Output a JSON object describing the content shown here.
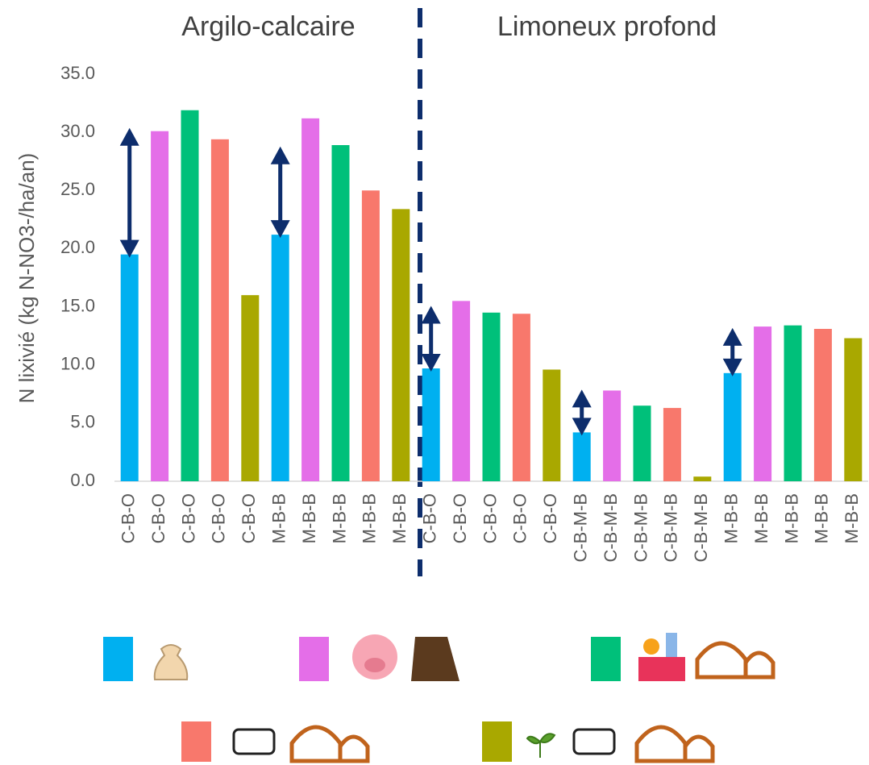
{
  "chart_data": {
    "type": "bar",
    "ylabel": "N lixivié (kg N-NO3-/ha/an)",
    "group_labels": [
      "Argilo-calcaire",
      "Limoneux profond"
    ],
    "categories": [
      "C-B-O",
      "C-B-O",
      "C-B-O",
      "C-B-O",
      "C-B-O",
      "M-B-B",
      "M-B-B",
      "M-B-B",
      "M-B-B",
      "M-B-B",
      "C-B-O",
      "C-B-O",
      "C-B-O",
      "C-B-O",
      "C-B-O",
      "C-B-M-B",
      "C-B-M-B",
      "C-B-M-B",
      "C-B-M-B",
      "C-B-M-B",
      "M-B-B",
      "M-B-B",
      "M-B-B",
      "M-B-B",
      "M-B-B"
    ],
    "values": [
      19.5,
      30.1,
      31.9,
      29.4,
      16.0,
      21.2,
      31.2,
      28.9,
      25.0,
      23.4,
      9.7,
      15.5,
      14.5,
      14.4,
      9.6,
      4.2,
      7.8,
      6.5,
      6.3,
      0.4,
      9.3,
      13.3,
      13.4,
      13.1,
      12.3
    ],
    "colors": [
      "#00b0f0",
      "#e46ee8",
      "#00c07a",
      "#f8786c",
      "#a9a800"
    ],
    "arrows": [
      {
        "from": 19.5,
        "to": 30.1
      },
      {
        "from": 21.2,
        "to": 28.5
      },
      {
        "from": 9.7,
        "to": 14.8
      },
      {
        "from": 4.2,
        "to": 7.6
      },
      {
        "from": 9.3,
        "to": 12.9
      }
    ],
    "ylim": [
      0,
      35
    ],
    "yticks": [
      {
        "value": 0,
        "label": "0.0"
      },
      {
        "value": 5,
        "label": "5.0"
      },
      {
        "value": 10,
        "label": "10.0"
      },
      {
        "value": 15,
        "label": "15.0"
      },
      {
        "value": 20,
        "label": "20.0"
      },
      {
        "value": 25,
        "label": "25.0"
      },
      {
        "value": 30,
        "label": "30.0"
      },
      {
        "value": 35,
        "label": "35.0"
      }
    ],
    "grid": false
  }
}
